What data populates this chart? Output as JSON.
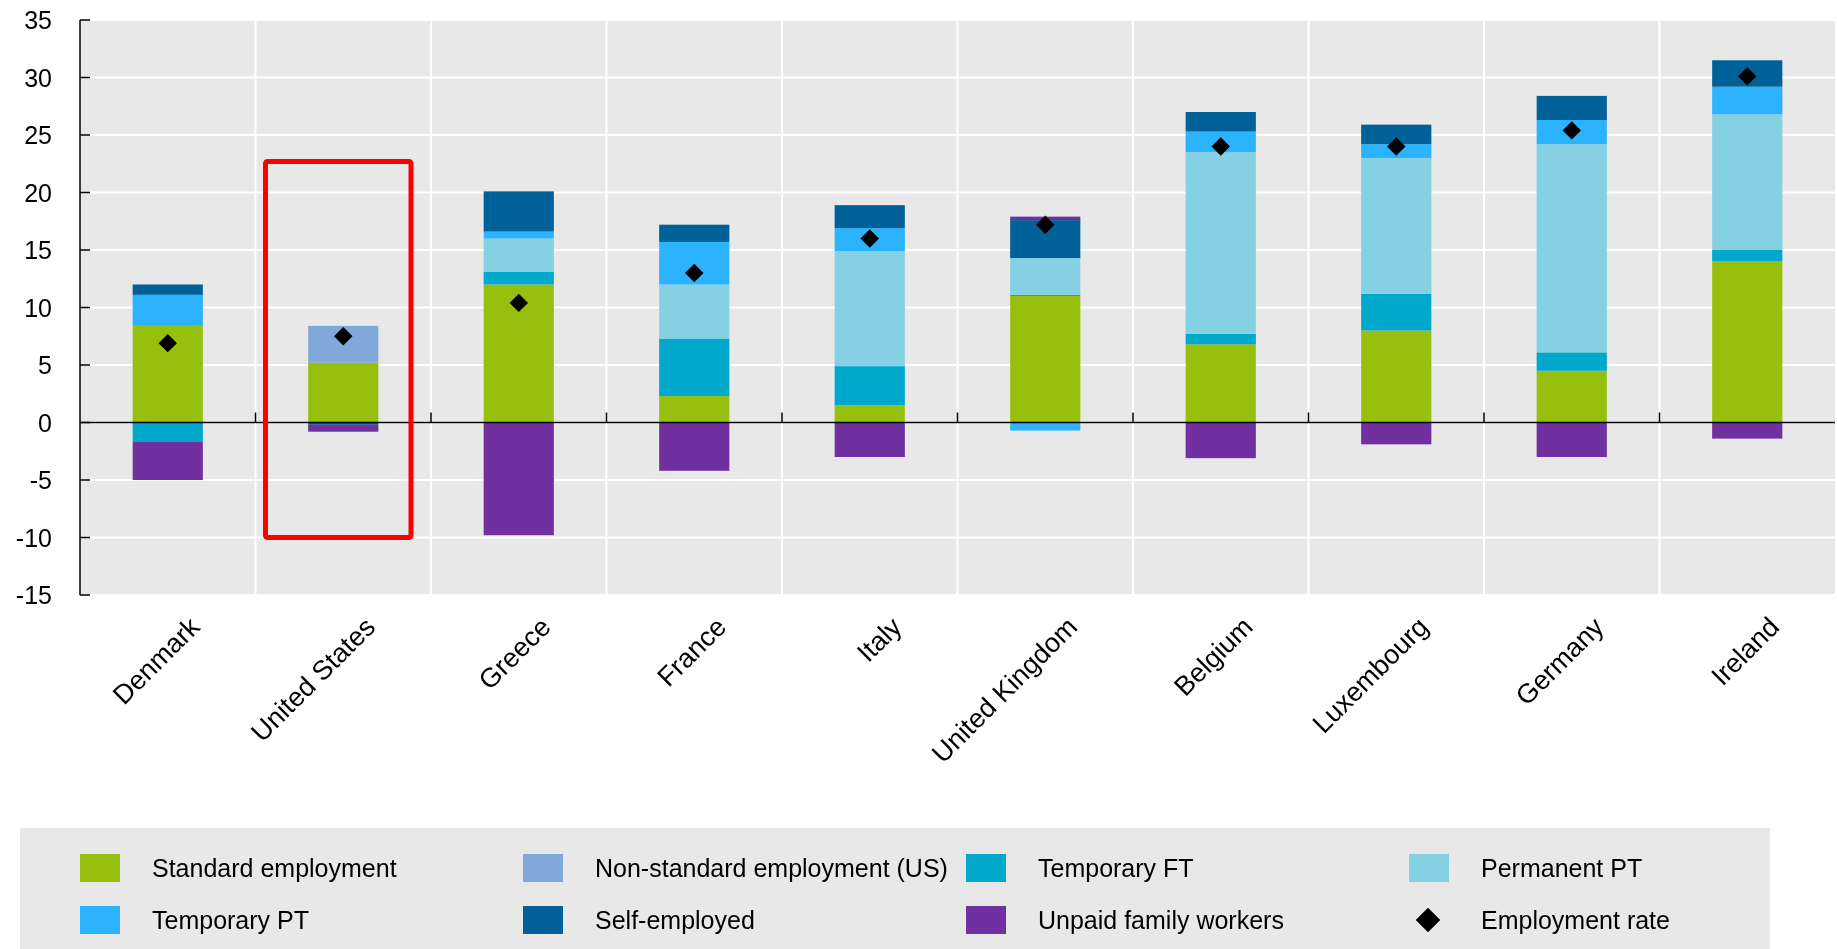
{
  "chart_data": {
    "type": "bar",
    "stacked": true,
    "categories": [
      "Denmark",
      "United States",
      "Greece",
      "France",
      "Italy",
      "United Kingdom",
      "Belgium",
      "Luxembourg",
      "Germany",
      "Ireland"
    ],
    "series": [
      {
        "name": "Standard employment",
        "color": "#97bf0d",
        "values": [
          8.4,
          5.2,
          12.0,
          2.3,
          1.5,
          11.0,
          6.8,
          8.0,
          4.5,
          14.0
        ]
      },
      {
        "name": "Non-standard employment (US)",
        "color": "#80a8d8",
        "values": [
          null,
          3.2,
          null,
          null,
          null,
          null,
          null,
          null,
          null,
          null
        ]
      },
      {
        "name": "Temporary FT",
        "color": "#00a9cc",
        "values": [
          -1.7,
          null,
          1.1,
          5.0,
          3.4,
          0.1,
          0.9,
          3.2,
          1.6,
          1.0
        ]
      },
      {
        "name": "Permanent PT",
        "color": "#86d0e3",
        "values": [
          null,
          null,
          2.9,
          4.7,
          10.0,
          3.2,
          15.8,
          11.8,
          18.1,
          11.8
        ]
      },
      {
        "name": "Temporary PT",
        "color": "#2bb3ff",
        "values": [
          2.7,
          null,
          0.6,
          3.7,
          2.0,
          -0.7,
          1.8,
          1.2,
          2.1,
          2.4
        ]
      },
      {
        "name": "Self-employed",
        "color": "#006198",
        "values": [
          0.9,
          -0.2,
          3.5,
          1.5,
          2.0,
          3.3,
          1.7,
          1.7,
          2.1,
          2.3
        ]
      },
      {
        "name": "Unpaid family workers",
        "color": "#7030a0",
        "values": [
          -3.3,
          -0.6,
          -9.8,
          -4.2,
          -3.0,
          0.3,
          -3.1,
          -1.9,
          -3.0,
          -1.4
        ]
      },
      {
        "name": "Employment rate",
        "type": "scatter",
        "marker": "diamond",
        "color": "#000000",
        "x": [
          "Denmark",
          "United States",
          "Greece",
          "France",
          "Italy",
          "United Kingdom",
          "Belgium",
          "Luxembourg",
          "Germany",
          "Ireland"
        ],
        "values": [
          6.9,
          7.5,
          10.4,
          13.0,
          16.0,
          17.2,
          24.0,
          24.0,
          25.4,
          30.1
        ]
      }
    ],
    "ylim": [
      -15,
      35
    ],
    "yticks": [
      -15,
      -10,
      -5,
      0,
      5,
      10,
      15,
      20,
      25,
      30,
      35
    ],
    "grid": true,
    "legend": "bottom"
  }
}
